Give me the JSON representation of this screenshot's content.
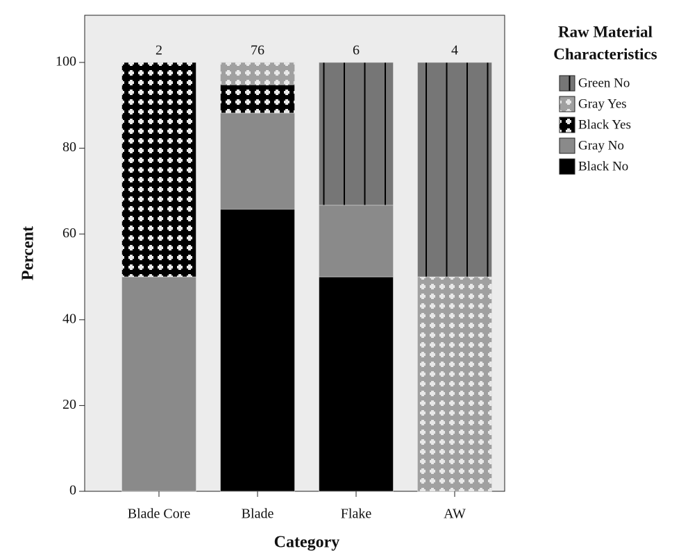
{
  "chart_data": {
    "type": "stacked_bar",
    "x_label": "Category",
    "y_label": "Percent",
    "legend_title": [
      "Raw Material",
      "Characteristics"
    ],
    "categories": [
      "Blade Core",
      "Blade",
      "Flake",
      "AW"
    ],
    "counts": [
      2,
      76,
      6,
      4
    ],
    "series": [
      {
        "name": "Black No",
        "color": "#000000",
        "pattern": "solid",
        "values": [
          0,
          65.8,
          50,
          0
        ]
      },
      {
        "name": "Gray No",
        "color": "#8a8a8a",
        "pattern": "solid",
        "values": [
          50,
          22.4,
          16.7,
          0
        ]
      },
      {
        "name": "Black Yes",
        "color": "#000000",
        "pattern": "cross",
        "values": [
          50,
          6.6,
          0,
          0
        ]
      },
      {
        "name": "Gray Yes",
        "color": "#a0a0a0",
        "pattern": "cross",
        "values": [
          0,
          5.2,
          0,
          50
        ]
      },
      {
        "name": "Green No",
        "color": "#767676",
        "pattern": "stripes",
        "values": [
          0,
          0,
          33.3,
          50
        ]
      }
    ],
    "ylim": [
      0,
      111
    ],
    "yticks": [
      0,
      20,
      40,
      60,
      80,
      100
    ]
  }
}
